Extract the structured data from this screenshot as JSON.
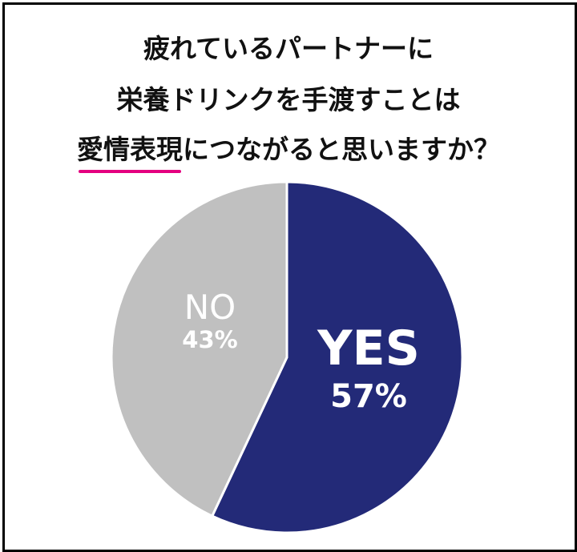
{
  "title": {
    "line1": "疲れているパートナーに",
    "line2": "栄養ドリンクを手渡すことは",
    "line3_emphasis": "愛情表現",
    "line3_rest": "につながると思いますか？"
  },
  "colors": {
    "yes": "#232a78",
    "no": "#c0c0c0",
    "underline": "#e4007f"
  },
  "chart_data": {
    "type": "pie",
    "slices": [
      {
        "label": "YES",
        "value": 57,
        "value_label": "57%"
      },
      {
        "label": "NO",
        "value": 43,
        "value_label": "43%"
      }
    ]
  }
}
